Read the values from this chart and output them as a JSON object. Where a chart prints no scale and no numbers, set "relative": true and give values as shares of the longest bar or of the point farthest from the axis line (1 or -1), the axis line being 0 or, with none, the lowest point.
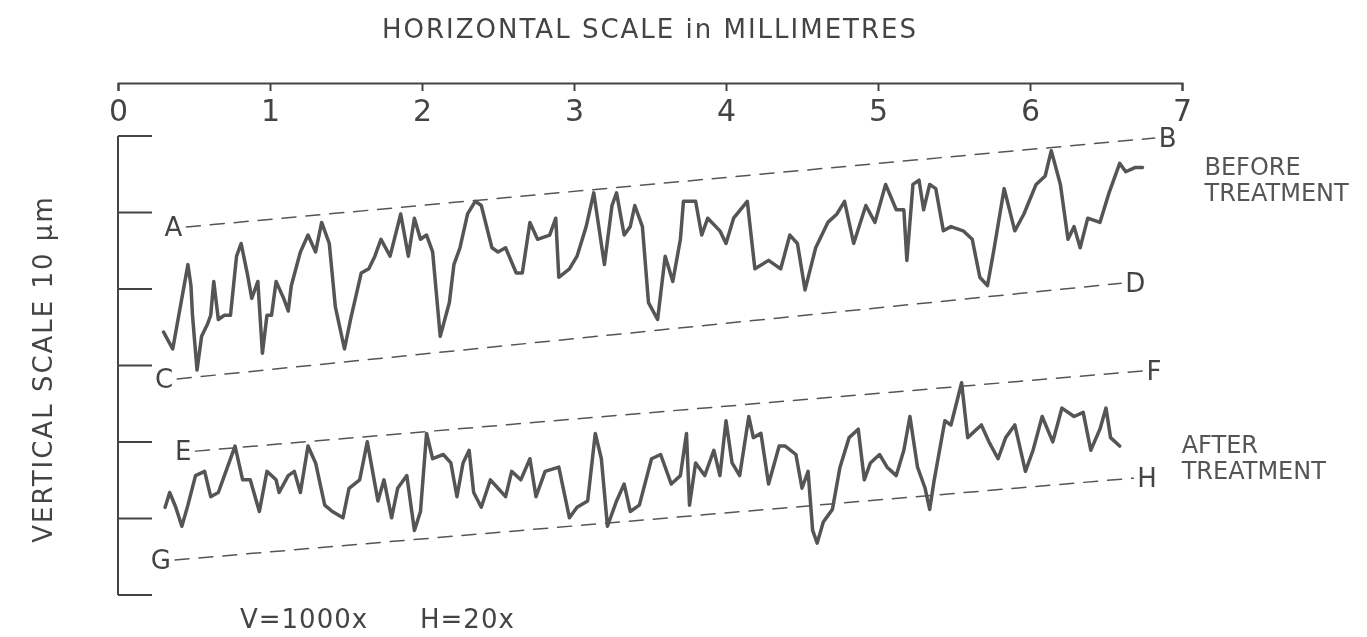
{
  "chart_data": {
    "type": "line",
    "xlabel": "HORIZONTAL SCALE in MILLIMETRES",
    "ylabel": "VERTICAL SCALE 10 µm",
    "relative": true,
    "xlim": [
      0,
      7
    ],
    "xticks": [
      0,
      1,
      2,
      3,
      4,
      5,
      6,
      7
    ],
    "series": [
      {
        "name": "BEFORE TREATMENT",
        "color": "#555555",
        "line_style": "solid",
        "x": [
          0.3,
          0.36,
          0.38,
          0.41,
          0.43,
          0.46,
          0.48,
          0.49,
          0.52,
          0.55,
          0.59,
          0.61,
          0.63,
          0.66,
          0.7,
          0.74,
          0.78,
          0.81,
          0.85,
          0.88,
          0.92,
          0.95,
          0.98,
          1.01,
          1.04,
          1.09,
          1.12,
          1.14,
          1.2,
          1.25,
          1.3,
          1.34,
          1.39,
          1.43,
          1.49,
          1.53,
          1.6,
          1.65,
          1.69,
          1.73,
          1.79,
          1.86,
          1.91,
          1.95,
          1.99,
          2.03,
          2.07,
          2.12,
          2.18,
          2.21,
          2.25,
          2.3,
          2.35,
          2.39,
          2.46,
          2.5,
          2.55,
          2.62,
          2.66,
          2.71,
          2.76,
          2.84,
          2.88,
          2.9,
          2.97,
          3.02,
          3.08,
          3.13,
          3.2,
          3.25,
          3.28,
          3.33,
          3.37,
          3.4,
          3.45,
          3.49,
          3.55,
          3.6,
          3.65,
          3.7,
          3.72,
          3.8,
          3.84,
          3.88,
          3.96,
          4.0,
          4.05,
          4.14,
          4.19,
          4.28,
          4.36,
          4.42,
          4.47,
          4.52,
          4.59,
          4.67,
          4.73,
          4.78,
          4.84,
          4.92,
          4.98,
          5.05,
          5.12,
          5.17,
          5.19,
          5.23,
          5.27,
          5.3,
          5.34,
          5.38,
          5.43,
          5.48,
          5.56,
          5.62,
          5.67,
          5.72,
          5.76,
          5.83,
          5.9,
          5.96,
          6.04,
          6.1,
          6.14,
          6.2,
          6.25,
          6.29,
          6.33,
          6.38,
          6.46,
          6.52,
          6.59,
          6.63,
          6.69,
          6.74
        ],
        "values": [
          0.54,
          0.5,
          0.54,
          0.6,
          0.64,
          0.7,
          0.65,
          0.58,
          0.45,
          0.53,
          0.56,
          0.58,
          0.66,
          0.57,
          0.58,
          0.58,
          0.72,
          0.75,
          0.68,
          0.62,
          0.66,
          0.49,
          0.58,
          0.58,
          0.66,
          0.62,
          0.59,
          0.65,
          0.73,
          0.77,
          0.73,
          0.8,
          0.75,
          0.6,
          0.5,
          0.57,
          0.68,
          0.69,
          0.72,
          0.76,
          0.72,
          0.82,
          0.72,
          0.81,
          0.76,
          0.77,
          0.73,
          0.53,
          0.61,
          0.7,
          0.74,
          0.82,
          0.85,
          0.84,
          0.74,
          0.73,
          0.74,
          0.68,
          0.68,
          0.8,
          0.76,
          0.77,
          0.81,
          0.67,
          0.69,
          0.72,
          0.79,
          0.87,
          0.7,
          0.84,
          0.87,
          0.77,
          0.79,
          0.84,
          0.79,
          0.61,
          0.57,
          0.72,
          0.66,
          0.76,
          0.85,
          0.85,
          0.77,
          0.81,
          0.78,
          0.75,
          0.81,
          0.85,
          0.69,
          0.71,
          0.69,
          0.77,
          0.75,
          0.64,
          0.74,
          0.8,
          0.82,
          0.85,
          0.75,
          0.84,
          0.8,
          0.89,
          0.83,
          0.83,
          0.71,
          0.89,
          0.9,
          0.83,
          0.89,
          0.88,
          0.78,
          0.79,
          0.78,
          0.76,
          0.67,
          0.65,
          0.73,
          0.88,
          0.78,
          0.82,
          0.89,
          0.91,
          0.97,
          0.89,
          0.76,
          0.79,
          0.74,
          0.81,
          0.8,
          0.87,
          0.94,
          0.92,
          0.93,
          0.93
        ]
      },
      {
        "name": "AFTER TREATMENT",
        "color": "#555555",
        "line_style": "solid",
        "x": [
          0.31,
          0.34,
          0.38,
          0.42,
          0.46,
          0.51,
          0.57,
          0.61,
          0.66,
          0.7,
          0.77,
          0.82,
          0.87,
          0.93,
          0.98,
          1.04,
          1.06,
          1.12,
          1.16,
          1.2,
          1.25,
          1.3,
          1.36,
          1.41,
          1.48,
          1.52,
          1.59,
          1.64,
          1.71,
          1.75,
          1.8,
          1.84,
          1.9,
          1.95,
          1.99,
          2.03,
          2.07,
          2.14,
          2.19,
          2.23,
          2.27,
          2.31,
          2.34,
          2.39,
          2.45,
          2.5,
          2.55,
          2.59,
          2.65,
          2.71,
          2.75,
          2.81,
          2.9,
          2.97,
          3.02,
          3.09,
          3.14,
          3.18,
          3.22,
          3.28,
          3.33,
          3.37,
          3.43,
          3.51,
          3.57,
          3.64,
          3.7,
          3.74,
          3.76,
          3.8,
          3.86,
          3.92,
          3.96,
          4.0,
          4.04,
          4.09,
          4.15,
          4.18,
          4.23,
          4.28,
          4.35,
          4.39,
          4.46,
          4.5,
          4.54,
          4.57,
          4.6,
          4.64,
          4.7,
          4.75,
          4.81,
          4.87,
          4.91,
          4.95,
          5.01,
          5.06,
          5.12,
          5.17,
          5.21,
          5.26,
          5.31,
          5.34,
          5.37,
          5.44,
          5.48,
          5.55,
          5.59,
          5.68,
          5.73,
          5.79,
          5.84,
          5.9,
          5.97,
          6.02,
          6.08,
          6.15,
          6.21,
          6.29,
          6.35,
          6.4,
          6.46,
          6.5,
          6.53,
          6.59
        ],
        "values": [
          0.125,
          0.16,
          0.125,
          0.08,
          0.13,
          0.2,
          0.21,
          0.15,
          0.16,
          0.2,
          0.27,
          0.19,
          0.19,
          0.115,
          0.21,
          0.19,
          0.16,
          0.2,
          0.21,
          0.16,
          0.27,
          0.23,
          0.13,
          0.115,
          0.1,
          0.17,
          0.19,
          0.28,
          0.14,
          0.19,
          0.1,
          0.17,
          0.2,
          0.07,
          0.115,
          0.3,
          0.24,
          0.25,
          0.23,
          0.15,
          0.23,
          0.26,
          0.16,
          0.125,
          0.19,
          0.17,
          0.15,
          0.21,
          0.19,
          0.24,
          0.15,
          0.21,
          0.22,
          0.1,
          0.125,
          0.14,
          0.3,
          0.24,
          0.08,
          0.14,
          0.18,
          0.115,
          0.13,
          0.24,
          0.25,
          0.18,
          0.2,
          0.3,
          0.13,
          0.23,
          0.2,
          0.26,
          0.2,
          0.33,
          0.23,
          0.2,
          0.34,
          0.29,
          0.3,
          0.18,
          0.27,
          0.27,
          0.25,
          0.17,
          0.21,
          0.07,
          0.04,
          0.09,
          0.12,
          0.22,
          0.29,
          0.31,
          0.19,
          0.23,
          0.25,
          0.22,
          0.2,
          0.26,
          0.34,
          0.22,
          0.17,
          0.12,
          0.19,
          0.33,
          0.32,
          0.42,
          0.29,
          0.32,
          0.28,
          0.24,
          0.29,
          0.32,
          0.21,
          0.26,
          0.34,
          0.28,
          0.36,
          0.34,
          0.35,
          0.26,
          0.31,
          0.36,
          0.29,
          0.27
        ]
      },
      {
        "color": "#555555",
        "line_style": "dashed",
        "x": [
          0.45,
          6.82
        ],
        "values": [
          0.789,
          1.0
        ]
      },
      {
        "color": "#555555",
        "line_style": "dashed",
        "x": [
          0.39,
          6.6
        ],
        "values": [
          0.429,
          0.656
        ]
      },
      {
        "color": "#555555",
        "line_style": "dashed",
        "x": [
          0.51,
          6.74
        ],
        "values": [
          0.258,
          0.448
        ]
      },
      {
        "color": "#555555",
        "line_style": "dashed",
        "x": [
          0.375,
          6.68
        ],
        "values": [
          0.0,
          0.194
        ]
      }
    ],
    "annotations": [
      {
        "text": "A",
        "x": 0.45,
        "y": 0.789
      },
      {
        "text": "B",
        "x": 6.82,
        "y": 1.0
      },
      {
        "text": "C",
        "x": 0.39,
        "y": 0.429
      },
      {
        "text": "D",
        "x": 6.6,
        "y": 0.656
      },
      {
        "text": "E",
        "x": 0.51,
        "y": 0.258
      },
      {
        "text": "F",
        "x": 6.74,
        "y": 0.448
      },
      {
        "text": "G",
        "x": 0.375,
        "y": 0.0
      },
      {
        "text": "H",
        "x": 6.68,
        "y": 0.194
      },
      "V=1000x",
      "H=20x"
    ]
  }
}
